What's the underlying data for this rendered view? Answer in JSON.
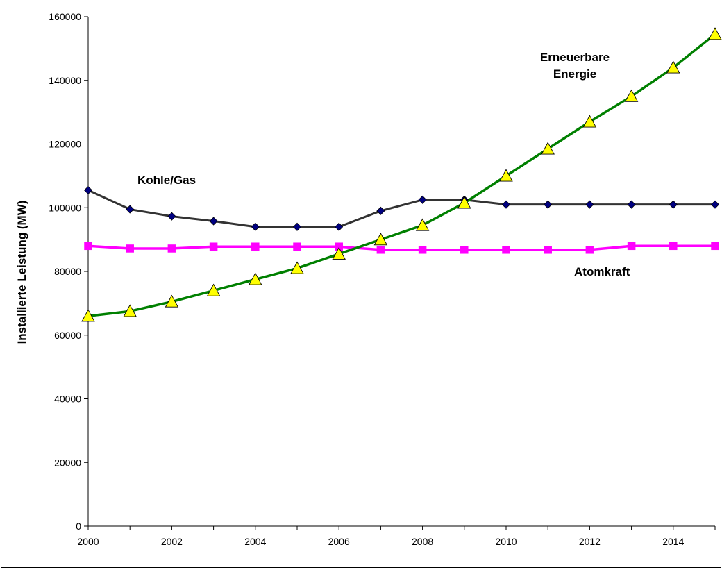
{
  "chart_data": {
    "type": "line",
    "title": "",
    "xlabel": "",
    "ylabel": "Installierte Leistung (MW)",
    "x": [
      2000,
      2001,
      2002,
      2003,
      2004,
      2005,
      2006,
      2007,
      2008,
      2009,
      2010,
      2011,
      2012,
      2013,
      2014,
      2015
    ],
    "xlim": [
      2000,
      2015
    ],
    "ylim": [
      0,
      160000
    ],
    "x_ticks": [
      "2000",
      "2002",
      "2004",
      "2006",
      "2008",
      "2010",
      "2012",
      "2014"
    ],
    "y_ticks": [
      "0",
      "20000",
      "40000",
      "60000",
      "80000",
      "100000",
      "120000",
      "140000",
      "160000"
    ],
    "grid": false,
    "legend": "none",
    "series": [
      {
        "name": "Kohle/Gas",
        "color": "#333333",
        "marker_color": "#000080",
        "marker": "diamond",
        "values": [
          105500,
          99500,
          97300,
          95800,
          94000,
          94000,
          94000,
          99000,
          102500,
          102500,
          101000,
          101000,
          101000,
          101000,
          101000,
          101000
        ]
      },
      {
        "name": "Atomkraft",
        "color": "#ff00ff",
        "marker_color": "#ff00ff",
        "marker": "square",
        "values": [
          88000,
          87200,
          87200,
          87800,
          87800,
          87800,
          87800,
          86800,
          86800,
          86800,
          86800,
          86800,
          86800,
          88000,
          88000,
          88000
        ]
      },
      {
        "name": "Erneuerbare Energie",
        "name_lines": [
          "Erneuerbare",
          "Energie"
        ],
        "color": "#008000",
        "marker_color": "#ffff00",
        "marker": "triangle",
        "values": [
          66000,
          67500,
          70500,
          74000,
          77500,
          81000,
          85500,
          90000,
          94500,
          101500,
          110000,
          118500,
          127000,
          135000,
          144000,
          154500
        ]
      }
    ]
  }
}
